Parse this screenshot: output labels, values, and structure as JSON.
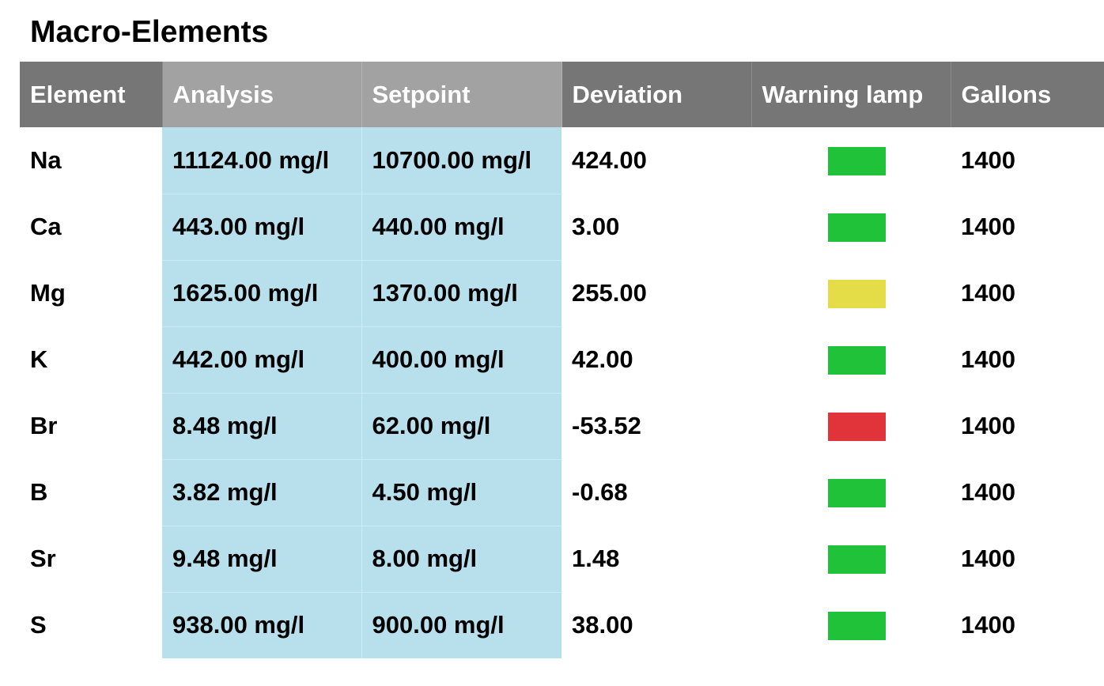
{
  "title": "Macro-Elements",
  "colors": {
    "header_dark": "#767676",
    "header_light": "#a2a2a2",
    "highlight_column": "#b8e0ec",
    "lamp_green": "#1fc238",
    "lamp_yellow": "#e5dd47",
    "lamp_red": "#e0343a"
  },
  "table": {
    "headers": [
      "Element",
      "Analysis",
      "Setpoint",
      "Deviation",
      "Warning lamp",
      "Gallons"
    ],
    "rows": [
      {
        "element": "Na",
        "analysis": "11124.00 mg/l",
        "setpoint": "10700.00 mg/l",
        "deviation": "424.00",
        "lamp": "green",
        "gallons": "1400"
      },
      {
        "element": "Ca",
        "analysis": "443.00 mg/l",
        "setpoint": "440.00 mg/l",
        "deviation": "3.00",
        "lamp": "green",
        "gallons": "1400"
      },
      {
        "element": "Mg",
        "analysis": "1625.00 mg/l",
        "setpoint": "1370.00 mg/l",
        "deviation": "255.00",
        "lamp": "yellow",
        "gallons": "1400"
      },
      {
        "element": "K",
        "analysis": "442.00 mg/l",
        "setpoint": "400.00 mg/l",
        "deviation": "42.00",
        "lamp": "green",
        "gallons": "1400"
      },
      {
        "element": "Br",
        "analysis": "8.48 mg/l",
        "setpoint": "62.00 mg/l",
        "deviation": "-53.52",
        "lamp": "red",
        "gallons": "1400"
      },
      {
        "element": "B",
        "analysis": "3.82 mg/l",
        "setpoint": "4.50 mg/l",
        "deviation": "-0.68",
        "lamp": "green",
        "gallons": "1400"
      },
      {
        "element": "Sr",
        "analysis": "9.48 mg/l",
        "setpoint": "8.00 mg/l",
        "deviation": "1.48",
        "lamp": "green",
        "gallons": "1400"
      },
      {
        "element": "S",
        "analysis": "938.00 mg/l",
        "setpoint": "900.00 mg/l",
        "deviation": "38.00",
        "lamp": "green",
        "gallons": "1400"
      }
    ]
  }
}
